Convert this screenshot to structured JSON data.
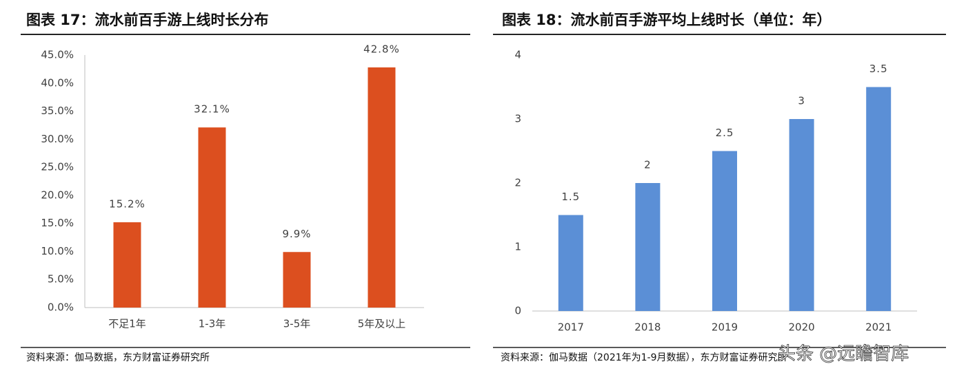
{
  "chart_data": [
    {
      "type": "bar",
      "title": "图表 17：流水前百手游上线时长分布",
      "categories": [
        "不足1年",
        "1-3年",
        "3-5年",
        "5年及以上"
      ],
      "values": [
        15.2,
        32.1,
        9.9,
        42.8
      ],
      "value_labels": [
        "15.2%",
        "32.1%",
        "9.9%",
        "42.8%"
      ],
      "color": "#dc4f1f",
      "ylim": [
        0,
        45
      ],
      "yticks": [
        {
          "value": 0,
          "label": "0.0%"
        },
        {
          "value": 5,
          "label": "5.0%"
        },
        {
          "value": 10,
          "label": "10.0%"
        },
        {
          "value": 15,
          "label": "15.0%"
        },
        {
          "value": 20,
          "label": "20.0%"
        },
        {
          "value": 25,
          "label": "25.0%"
        },
        {
          "value": 30,
          "label": "30.0%"
        },
        {
          "value": 35,
          "label": "35.0%"
        },
        {
          "value": 40,
          "label": "40.0%"
        },
        {
          "value": 45,
          "label": "45.0%"
        }
      ],
      "grid": false,
      "source": "资料来源：伽马数据，东方财富证券研究所"
    },
    {
      "type": "bar",
      "title": "图表 18：流水前百手游平均上线时长（单位：年）",
      "categories": [
        "2017",
        "2018",
        "2019",
        "2020",
        "2021"
      ],
      "values": [
        1.5,
        2,
        2.5,
        3,
        3.5
      ],
      "color": "#5b8fd6",
      "ylim": [
        0,
        4
      ],
      "yticks": [
        0,
        1,
        2,
        3,
        4
      ],
      "grid": false,
      "source": "资料来源：伽马数据（2021年为1-9月数据），东方财富证券研究所",
      "watermark": "头条 @远瞻智库"
    }
  ]
}
